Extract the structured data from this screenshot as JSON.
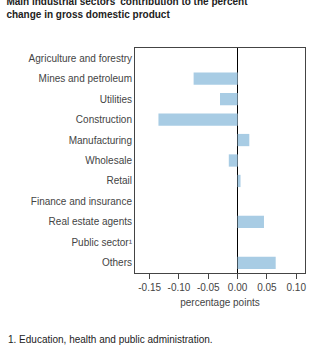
{
  "chart_data": {
    "type": "bar",
    "orientation": "horizontal",
    "title": "Main industrial sectors’ contribution to the percent\nchange in gross domestic product",
    "categories": [
      "Agriculture and forestry",
      "Mines and petroleum",
      "Utilities",
      "Construction",
      "Manufacturing",
      "Wholesale",
      "Retail",
      "Finance and insurance",
      "Real estate agents",
      "Public sector¹",
      "Others"
    ],
    "values": [
      0.0,
      -0.075,
      -0.03,
      -0.135,
      0.02,
      -0.015,
      0.005,
      0.0,
      0.045,
      0.0,
      0.065
    ],
    "color": "#a8cce4",
    "xlim": [
      -0.175,
      0.115
    ],
    "xticks": [
      -0.15,
      {
        "value": -0.1,
        "label": "-0.10"
      },
      -0.05,
      {
        "value": 0,
        "label": "0.00"
      },
      0.05,
      {
        "value": 0.1,
        "label": "0.10"
      }
    ],
    "xlabel": "percentage points",
    "annotations": [
      "1. Education, health and public administration."
    ],
    "grid": false
  }
}
